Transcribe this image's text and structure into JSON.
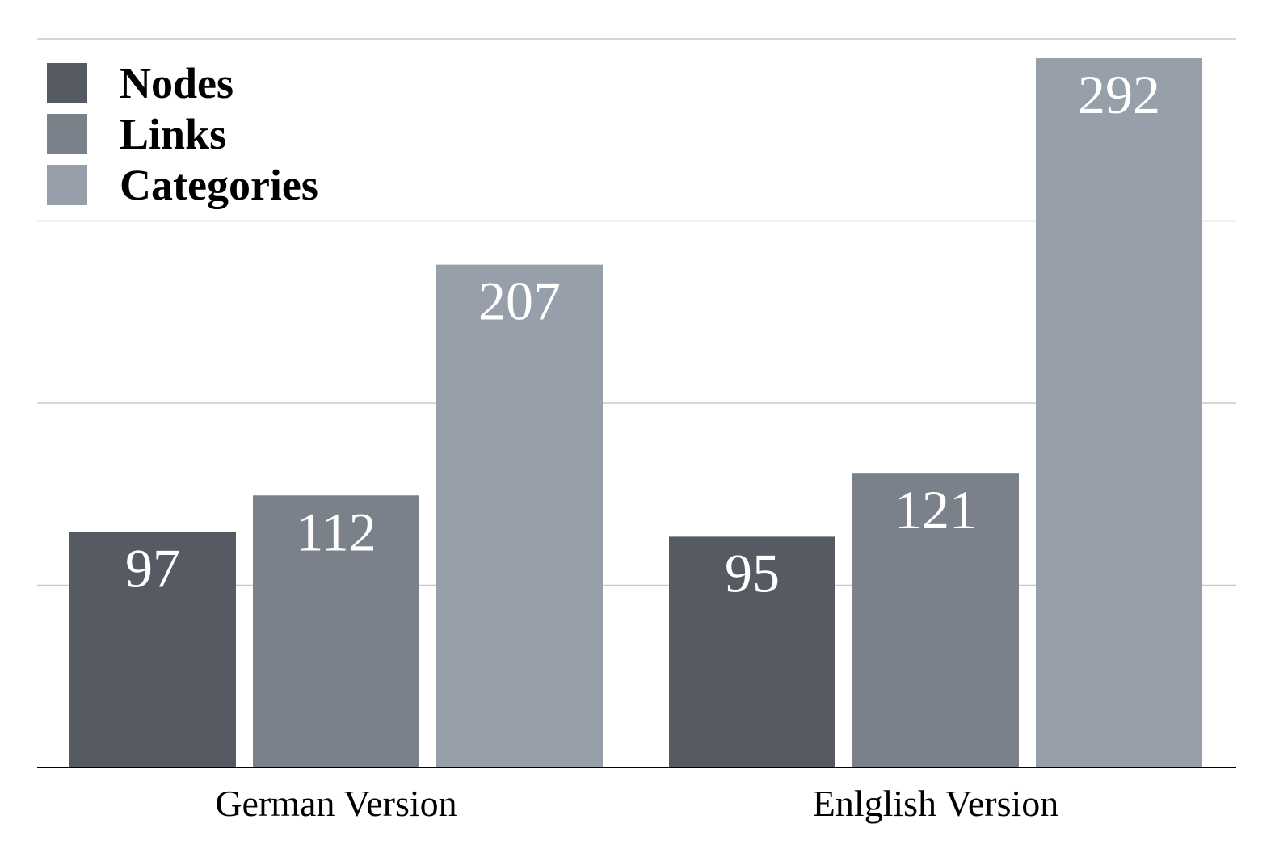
{
  "chart_data": {
    "type": "bar",
    "title": "",
    "xlabel": "",
    "ylabel": "",
    "categories": [
      "German Version",
      "Enlglish Version"
    ],
    "series": [
      {
        "name": "Nodes",
        "values": [
          97,
          95
        ],
        "color": "#565a62"
      },
      {
        "name": "Links",
        "values": [
          112,
          121
        ],
        "color": "#7b818a"
      },
      {
        "name": "Categories",
        "values": [
          207,
          292
        ],
        "color": "#97a0aa"
      }
    ],
    "ylim": [
      0,
      300
    ],
    "y_gridlines": [
      75,
      150,
      225,
      300
    ],
    "y_tick_labels_shown": false,
    "grid": true,
    "legend_position": "top-left",
    "value_labels": true,
    "colors": {
      "gridline": "#c8c8c8",
      "axis": "#000000",
      "value_label": "#ffffff"
    }
  }
}
